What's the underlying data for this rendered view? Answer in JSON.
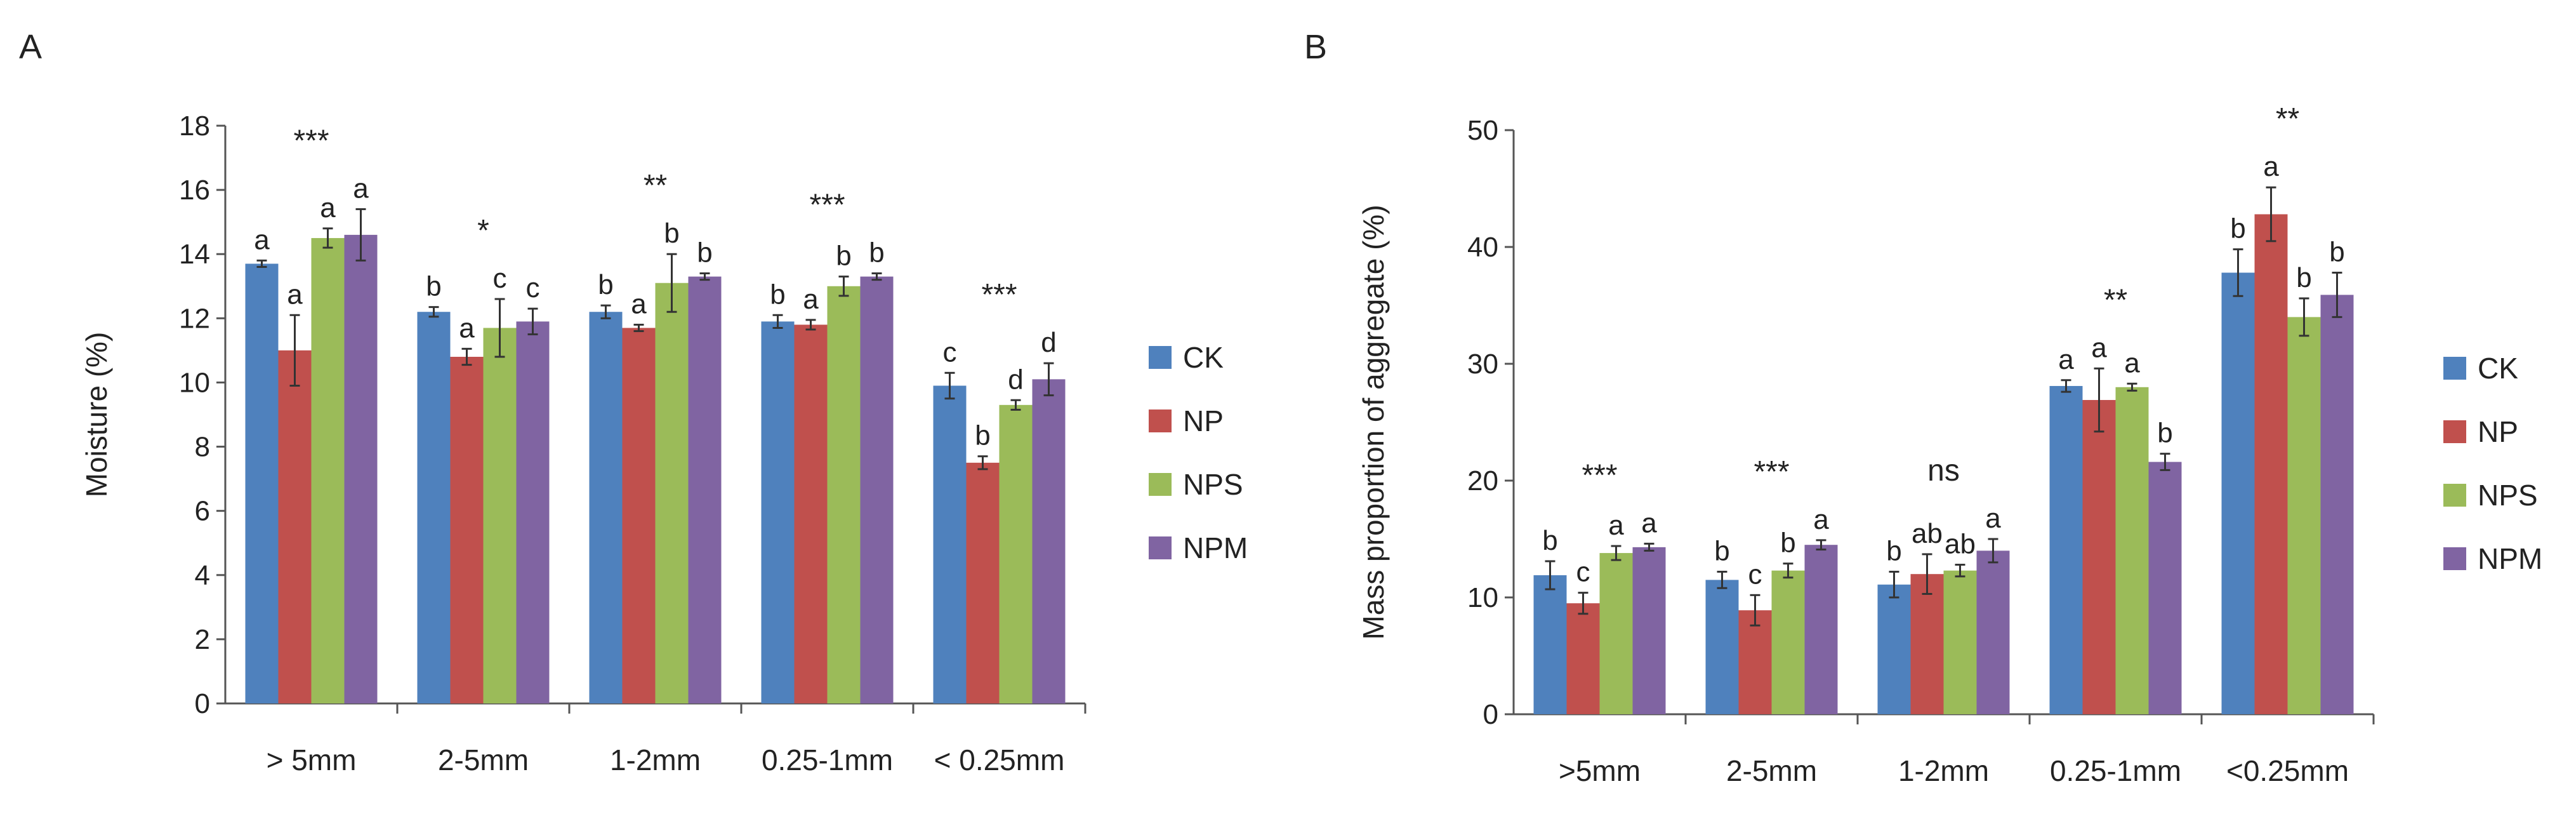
{
  "legend": [
    "CK",
    "NP",
    "NPS",
    "NPM"
  ],
  "colors": {
    "CK": "#4f81bd",
    "NP": "#c0504d",
    "NPS": "#9bbb59",
    "NPM": "#8064a2"
  },
  "chart_data": [
    {
      "panel": "A",
      "type": "bar",
      "ylabel": "Moisture (%)",
      "xlabel": "",
      "ylim": [
        0,
        18
      ],
      "yticks": [
        "0",
        "2",
        "4",
        "6",
        "8",
        "10",
        "12",
        "14",
        "16",
        "18"
      ],
      "categories": [
        "> 5mm",
        "2-5mm",
        "1-2mm",
        "0.25-1mm",
        "< 0.25mm"
      ],
      "significance": [
        "***",
        "*",
        "**",
        "***",
        "***"
      ],
      "series": [
        {
          "name": "CK",
          "values": [
            13.7,
            12.2,
            12.2,
            11.9,
            9.9
          ],
          "errors": [
            0.1,
            0.15,
            0.2,
            0.2,
            0.4
          ],
          "letters": [
            "a",
            "b",
            "b",
            "b",
            "c"
          ]
        },
        {
          "name": "NP",
          "values": [
            11.0,
            10.8,
            11.7,
            11.8,
            7.5
          ],
          "errors": [
            1.1,
            0.25,
            0.1,
            0.15,
            0.2
          ],
          "letters": [
            "a",
            "a",
            "a",
            "a",
            "b"
          ]
        },
        {
          "name": "NPS",
          "values": [
            14.5,
            11.7,
            13.1,
            13.0,
            9.3
          ],
          "errors": [
            0.3,
            0.9,
            0.9,
            0.3,
            0.15
          ],
          "letters": [
            "a",
            "c",
            "b",
            "b",
            "d"
          ]
        },
        {
          "name": "NPM",
          "values": [
            14.6,
            11.9,
            13.3,
            13.3,
            10.1
          ],
          "errors": [
            0.8,
            0.4,
            0.1,
            0.1,
            0.5
          ],
          "letters": [
            "a",
            "c",
            "b",
            "b",
            "d"
          ]
        }
      ]
    },
    {
      "panel": "B",
      "type": "bar",
      "ylabel": "Mass proportion of aggregate (%)",
      "xlabel": "",
      "ylim": [
        0,
        50
      ],
      "yticks": [
        "0",
        "10",
        "20",
        "30",
        "40",
        "50"
      ],
      "categories": [
        ">5mm",
        "2-5mm",
        "1-2mm",
        "0.25-1mm",
        "<0.25mm"
      ],
      "significance": [
        "***",
        "***",
        "ns",
        "**",
        "**"
      ],
      "series": [
        {
          "name": "CK",
          "values": [
            11.9,
            11.5,
            11.1,
            28.1,
            37.8
          ],
          "errors": [
            1.2,
            0.7,
            1.1,
            0.5,
            2.0
          ],
          "letters": [
            "b",
            "b",
            "b",
            "a",
            "b"
          ]
        },
        {
          "name": "NP",
          "values": [
            9.5,
            8.9,
            12.0,
            26.9,
            42.8
          ],
          "errors": [
            0.9,
            1.3,
            1.7,
            2.7,
            2.3
          ],
          "letters": [
            "c",
            "c",
            "ab",
            "a",
            "a"
          ]
        },
        {
          "name": "NPS",
          "values": [
            13.8,
            12.3,
            12.3,
            28.0,
            34.0
          ],
          "errors": [
            0.6,
            0.6,
            0.5,
            0.3,
            1.6
          ],
          "letters": [
            "a",
            "b",
            "ab",
            "a",
            "b"
          ]
        },
        {
          "name": "NPM",
          "values": [
            14.3,
            14.5,
            14.0,
            21.6,
            35.9
          ],
          "errors": [
            0.3,
            0.4,
            1.0,
            0.7,
            1.9
          ],
          "letters": [
            "a",
            "a",
            "a",
            "b",
            "b"
          ]
        }
      ]
    }
  ]
}
